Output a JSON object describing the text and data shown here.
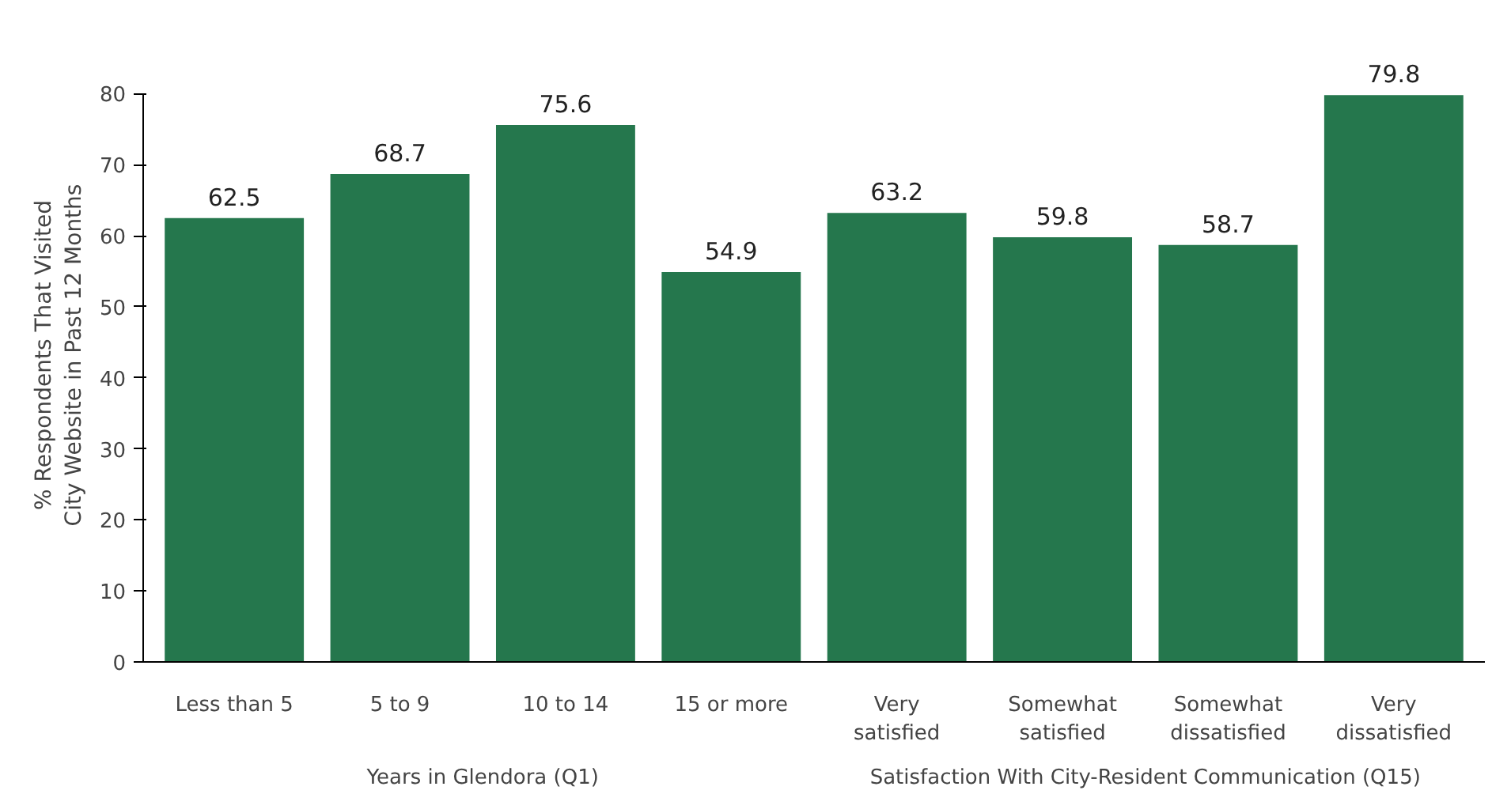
{
  "chart_data": {
    "type": "bar",
    "ylabel": "% Respondents That Visited\nCity Website in Past 12 Months",
    "categories": [
      "Less than 5",
      "5 to 9",
      "10 to 14",
      "15 or more",
      "Very\nsatisfied",
      "Somewhat\nsatisfied",
      "Somewhat\ndissatisfied",
      "Very\ndissatisfied"
    ],
    "values": [
      62.5,
      68.7,
      75.6,
      54.9,
      63.2,
      59.8,
      58.7,
      79.8
    ],
    "color": "#25774d",
    "ylim": [
      0,
      80
    ],
    "yticks": [
      0,
      10,
      20,
      30,
      40,
      50,
      60,
      70,
      80
    ],
    "data_labels": true,
    "grid": false,
    "annotations": [
      "Years in Glendora (Q1)",
      "Satisfaction With City-Resident Communication (Q15)"
    ]
  }
}
